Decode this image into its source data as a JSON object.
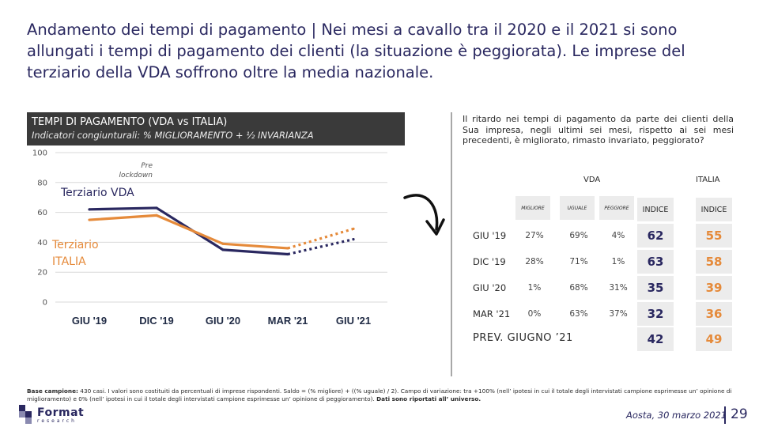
{
  "title": {
    "lead": "Andamento dei tempi di pagamento",
    "sep": "|",
    "rest": "Nei mesi a cavallo tra il 2020 e il 2021 si sono allungati i tempi di pagamento dei clienti (la situazione è peggiorata). Le imprese del terziario della VDA soffrono oltre la media nazionale."
  },
  "panel": {
    "title": "TEMPI DI PAGAMENTO (VDA vs ITALIA)",
    "subtitle": "Indicatori congiunturali: % MIGLIORAMENTO + ½ INVARIANZA"
  },
  "chart_data": {
    "type": "line",
    "categories": [
      "GIU '19",
      "DIC '19",
      "GIU '20",
      "MAR '21",
      "GIU '21"
    ],
    "ylim": [
      0,
      100
    ],
    "yticks": [
      0,
      20,
      40,
      60,
      80,
      100
    ],
    "annotation": "Pre lockdown",
    "series": [
      {
        "name": "Terziario VDA",
        "color": "#2a2860",
        "values": [
          62,
          63,
          35,
          32,
          42
        ],
        "forecast_from": 3
      },
      {
        "name": "Terziario ITALIA",
        "color": "#e58a3a",
        "values": [
          55,
          58,
          39,
          36,
          49
        ],
        "forecast_from": 3
      }
    ]
  },
  "explain": "Il ritardo nei tempi di pagamento da parte dei clienti della Sua impresa, negli ultimi sei mesi, rispetto ai sei mesi precedenti, è migliorato, rimasto invariato, peggiorato?",
  "table": {
    "vda_label": "VDA",
    "italia_label": "ITALIA",
    "col_headers": [
      "MIGLIORE",
      "UGUALE",
      "PEGGIORE"
    ],
    "index_header": "INDICE",
    "rows": [
      {
        "label": "GIU '19",
        "migliore": "27%",
        "uguale": "69%",
        "peggiore": "4%",
        "vda": "62",
        "italia": "55"
      },
      {
        "label": "DIC '19",
        "migliore": "28%",
        "uguale": "71%",
        "peggiore": "1%",
        "vda": "63",
        "italia": "58"
      },
      {
        "label": "GIU '20",
        "migliore": "1%",
        "uguale": "68%",
        "peggiore": "31%",
        "vda": "35",
        "italia": "39"
      },
      {
        "label": "MAR '21",
        "migliore": "0%",
        "uguale": "63%",
        "peggiore": "37%",
        "vda": "32",
        "italia": "36"
      }
    ],
    "forecast": {
      "label": "PREV. GIUGNO  ’21",
      "vda": "42",
      "italia": "49"
    }
  },
  "footnote": {
    "bold1": "Base campione:",
    "text": " 430 casi. I valori sono costituiti da percentuali di imprese rispondenti. Saldo = (% migliore) + ((% uguale) / 2). Campo di variazione: tra +100% (nell’ ipotesi in cui il totale degli intervistati campione esprimesse un’ opinione di miglioramento) e 0% (nell’ ipotesi in cui il totale degli intervistati campione esprimesse un’ opinione di peggioramento). ",
    "bold2": "Dati sono riportati all’ universo."
  },
  "brand": {
    "name": "Format",
    "sub": "research"
  },
  "footer": {
    "date": "Aosta, 30 marzo 2021",
    "page": "29"
  }
}
